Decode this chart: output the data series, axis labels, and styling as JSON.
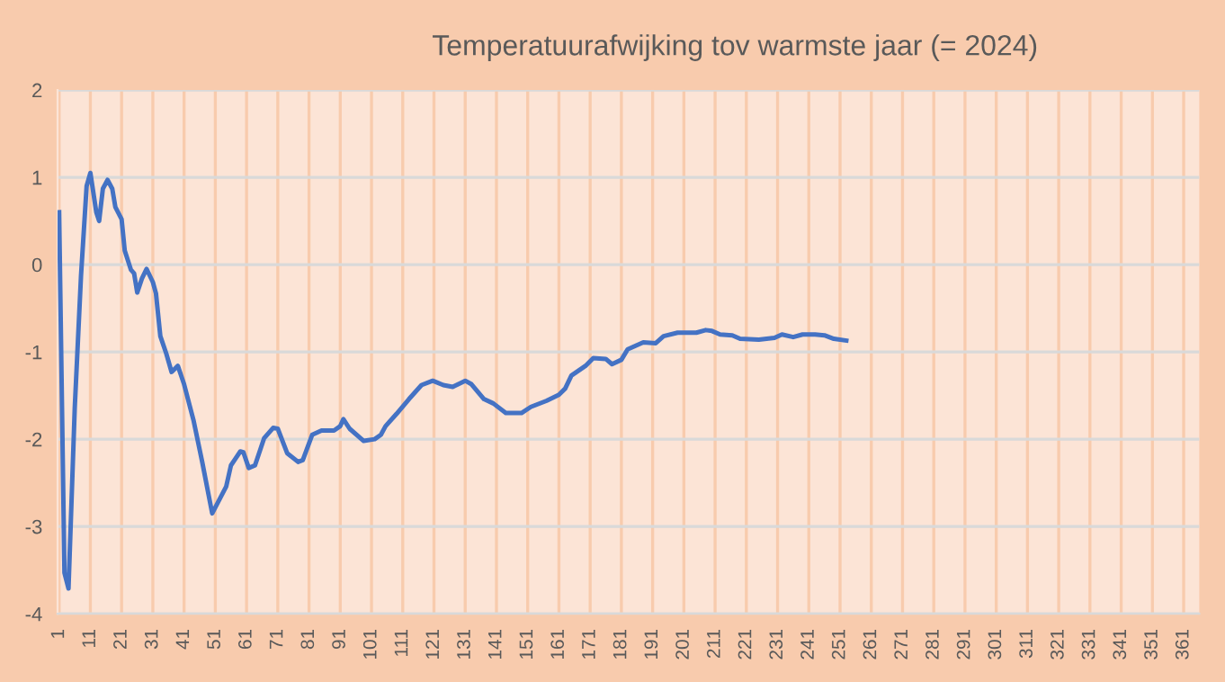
{
  "chart_data": {
    "type": "line",
    "title": "Temperatuurafwijking tov warmste jaar (= 2024)",
    "series": [
      {
        "color": "#4472c4",
        "x": [
          1,
          2.7,
          4,
          6,
          8,
          9.8,
          11,
          12.9,
          13.8,
          15,
          16.5,
          18,
          19,
          21,
          22,
          24,
          25,
          26,
          27.5,
          29,
          31,
          32,
          33.4,
          35.3,
          37,
          39,
          41,
          44,
          46.8,
          50,
          54.5,
          56,
          59,
          60,
          61.7,
          63.7,
          66.6,
          69.5,
          71,
          74,
          77.5,
          79,
          82,
          85,
          89,
          91,
          92,
          94,
          98.5,
          102,
          104,
          105.5,
          109,
          113,
          117,
          120.6,
          124,
          127,
          131,
          133,
          137,
          140,
          144,
          149,
          152,
          157,
          161,
          163,
          165,
          169.5,
          172,
          176,
          178,
          181,
          183,
          188,
          192,
          194.5,
          199,
          205,
          208,
          210,
          212.6,
          216.5,
          219,
          225,
          230,
          232.4,
          236,
          239,
          243,
          246,
          249,
          253
        ],
        "values": [
          0.6,
          -3.53,
          -3.71,
          -1.64,
          -0.13,
          0.9,
          1.05,
          0.6,
          0.5,
          0.87,
          0.97,
          0.87,
          0.66,
          0.52,
          0.16,
          -0.06,
          -0.1,
          -0.32,
          -0.16,
          -0.05,
          -0.2,
          -0.33,
          -0.82,
          -1.02,
          -1.23,
          -1.16,
          -1.37,
          -1.78,
          -2.26,
          -2.85,
          -2.54,
          -2.3,
          -2.14,
          -2.15,
          -2.33,
          -2.3,
          -1.99,
          -1.87,
          -1.88,
          -2.16,
          -2.26,
          -2.24,
          -1.95,
          -1.9,
          -1.9,
          -1.85,
          -1.77,
          -1.88,
          -2.02,
          -2.0,
          -1.95,
          -1.85,
          -1.71,
          -1.54,
          -1.38,
          -1.33,
          -1.38,
          -1.4,
          -1.33,
          -1.37,
          -1.54,
          -1.59,
          -1.7,
          -1.7,
          -1.63,
          -1.56,
          -1.49,
          -1.42,
          -1.27,
          -1.16,
          -1.07,
          -1.08,
          -1.14,
          -1.09,
          -0.97,
          -0.89,
          -0.9,
          -0.82,
          -0.78,
          -0.78,
          -0.75,
          -0.76,
          -0.8,
          -0.81,
          -0.85,
          -0.86,
          -0.84,
          -0.8,
          -0.83,
          -0.8,
          -0.8,
          -0.81,
          -0.85,
          -0.87
        ]
      }
    ],
    "xlim": [
      0.5,
      366
    ],
    "xticks": [
      1,
      11,
      21,
      31,
      41,
      51,
      61,
      71,
      81,
      91,
      101,
      111,
      121,
      131,
      141,
      151,
      161,
      171,
      181,
      191,
      201,
      211,
      221,
      231,
      241,
      251,
      261,
      271,
      281,
      291,
      301,
      311,
      321,
      331,
      341,
      351,
      361
    ],
    "ylim": [
      -4,
      2
    ],
    "yticks": [
      -4,
      -3,
      -2,
      -1,
      0,
      1,
      2
    ],
    "grid": true,
    "marker": "none",
    "line_style": "solid"
  }
}
